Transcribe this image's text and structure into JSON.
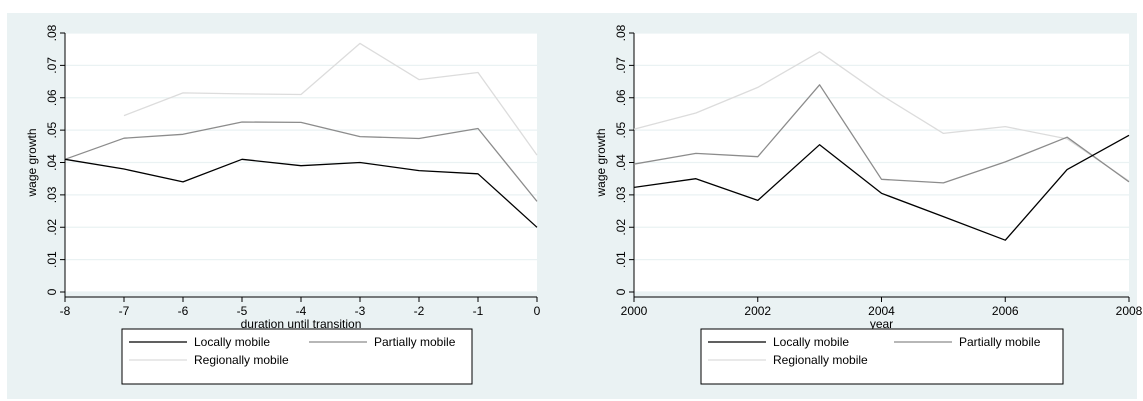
{
  "chart_data": [
    {
      "type": "line",
      "xlabel": "duration until transition",
      "ylabel": "wage growth",
      "xlim": [
        -8,
        0
      ],
      "ylim": [
        0,
        0.08
      ],
      "x_ticks": [
        "-8",
        "-7",
        "-6",
        "-5",
        "-4",
        "-3",
        "-2",
        "-1",
        "0"
      ],
      "y_ticks": [
        "0",
        ".01",
        ".02",
        ".03",
        ".04",
        ".05",
        ".06",
        ".07",
        ".08"
      ],
      "grid": true,
      "legend_position": "bottom",
      "series": [
        {
          "name": "Locally mobile",
          "color": "#000000",
          "x": [
            -8,
            -7,
            -6,
            -5,
            -4,
            -3,
            -2,
            -1,
            0
          ],
          "y": [
            0.041,
            0.038,
            0.034,
            0.041,
            0.039,
            0.04,
            0.0375,
            0.0365,
            0.02
          ]
        },
        {
          "name": "Partially mobile",
          "color": "#8c8c8c",
          "x": [
            -8,
            -7,
            -6,
            -5,
            -4,
            -3,
            -2,
            -1,
            0
          ],
          "y": [
            0.041,
            0.0475,
            0.0487,
            0.0525,
            0.0524,
            0.048,
            0.0474,
            0.0505,
            0.028
          ]
        },
        {
          "name": "Regionally mobile",
          "color": "#dcdcdc",
          "x": [
            -7,
            -6,
            -5,
            -4,
            -3,
            -2,
            -1,
            0
          ],
          "y": [
            0.0545,
            0.0615,
            0.0612,
            0.061,
            0.0768,
            0.0656,
            0.0678,
            0.0423
          ]
        }
      ]
    },
    {
      "type": "line",
      "xlabel": "year",
      "ylabel": "wage growth",
      "xlim": [
        2000,
        2008
      ],
      "ylim": [
        0,
        0.08
      ],
      "x_ticks": [
        "2000",
        "2002",
        "2004",
        "2006",
        "2008"
      ],
      "y_ticks": [
        "0",
        ".01",
        ".02",
        ".03",
        ".04",
        ".05",
        ".06",
        ".07",
        ".08"
      ],
      "grid": true,
      "legend_position": "bottom",
      "series": [
        {
          "name": "Locally mobile",
          "color": "#000000",
          "x": [
            2000,
            2001,
            2002,
            2003,
            2004,
            2005,
            2006,
            2007,
            2008
          ],
          "y": [
            0.0323,
            0.035,
            0.0283,
            0.0455,
            0.0305,
            0.0233,
            0.016,
            0.0378,
            0.0484
          ]
        },
        {
          "name": "Partially mobile",
          "color": "#8c8c8c",
          "x": [
            2000,
            2001,
            2002,
            2003,
            2004,
            2005,
            2006,
            2007,
            2008
          ],
          "y": [
            0.0395,
            0.0428,
            0.0418,
            0.064,
            0.0348,
            0.0337,
            0.0402,
            0.0478,
            0.034
          ]
        },
        {
          "name": "Regionally mobile",
          "color": "#dcdcdc",
          "x": [
            2000,
            2001,
            2002,
            2003,
            2004,
            2005,
            2006,
            2007,
            2008
          ],
          "y": [
            0.0503,
            0.0553,
            0.0632,
            0.0742,
            0.0608,
            0.049,
            0.0511,
            0.0473,
            0.0343
          ]
        }
      ]
    }
  ]
}
